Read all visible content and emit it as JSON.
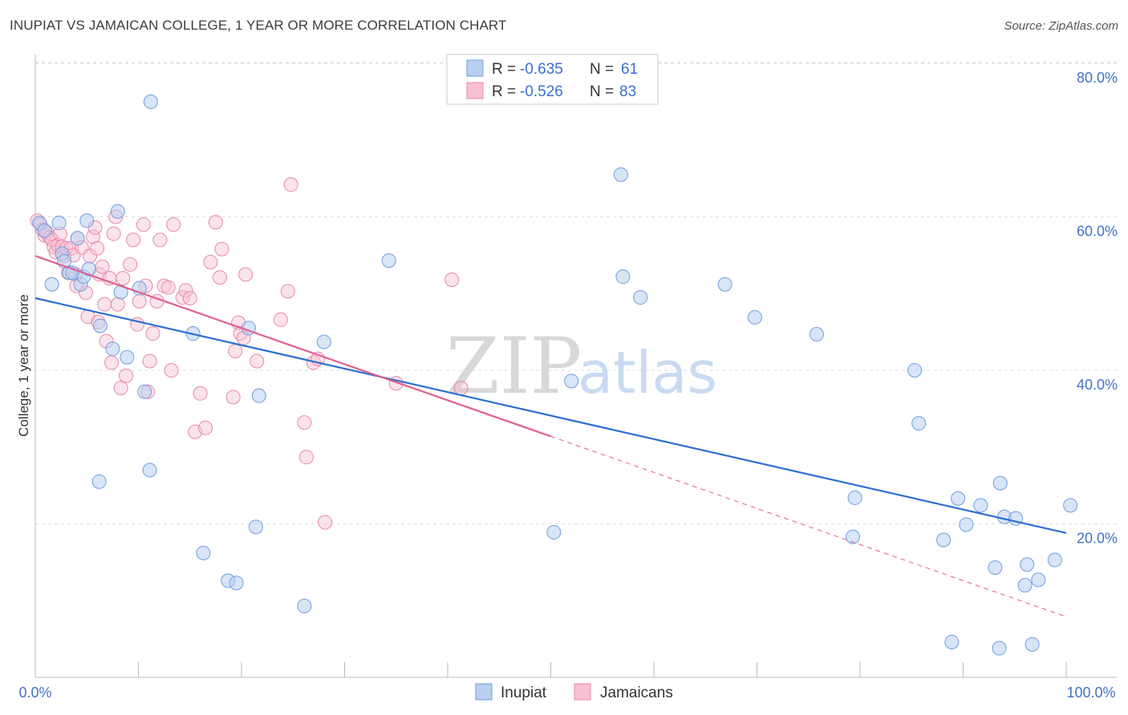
{
  "header": {
    "title": "INUPIAT VS JAMAICAN COLLEGE, 1 YEAR OR MORE CORRELATION CHART",
    "source": "Source: ZipAtlas.com"
  },
  "watermark": {
    "zip": "ZIP",
    "atlas": "atlas"
  },
  "colors": {
    "inupiat_fill": "#b8cff0",
    "inupiat_stroke": "#6f9ee0",
    "inupiat_line": "#2e6fd2",
    "jamaican_fill": "#f6c0d2",
    "jamaican_stroke": "#e888aa",
    "jamaican_line": "#e0608e",
    "grid": "#dddddd",
    "tick_text": "#4472c4"
  },
  "legend": {
    "rows": [
      {
        "r_label": "R =",
        "r_value": "-0.635",
        "n_label": "N =",
        "n_value": "61"
      },
      {
        "r_label": "R =",
        "r_value": "-0.526",
        "n_label": "N =",
        "n_value": "83"
      }
    ]
  },
  "chart_data": {
    "type": "scatter",
    "title": "INUPIAT VS JAMAICAN COLLEGE, 1 YEAR OR MORE CORRELATION CHART",
    "xlabel": "",
    "ylabel": "College, 1 year or more",
    "xlim": [
      0,
      100
    ],
    "ylim": [
      0,
      83
    ],
    "x_tick_labels": [
      "0.0%",
      "100.0%"
    ],
    "y_ticks": [
      20,
      40,
      60,
      80
    ],
    "y_tick_labels": [
      "20.0%",
      "40.0%",
      "60.0%",
      "80.0%"
    ],
    "grid": true,
    "legend_position": "top-center",
    "series": [
      {
        "name": "Inupiat",
        "r": -0.635,
        "n": 61,
        "trend": {
          "x": [
            0,
            100
          ],
          "y": [
            49.4,
            18.8
          ]
        },
        "points": [
          [
            0.4,
            59.2
          ],
          [
            0.9,
            58.2
          ],
          [
            1.6,
            51.2
          ],
          [
            2.3,
            59.2
          ],
          [
            2.6,
            55.2
          ],
          [
            2.8,
            54.2
          ],
          [
            3.3,
            52.7
          ],
          [
            3.6,
            52.7
          ],
          [
            4.1,
            57.2
          ],
          [
            4.4,
            51.2
          ],
          [
            4.7,
            52.2
          ],
          [
            5.0,
            59.5
          ],
          [
            5.2,
            53.2
          ],
          [
            6.3,
            45.8
          ],
          [
            6.2,
            25.5
          ],
          [
            7.5,
            42.8
          ],
          [
            8.0,
            60.7
          ],
          [
            8.3,
            50.2
          ],
          [
            8.9,
            41.7
          ],
          [
            10.1,
            50.7
          ],
          [
            10.6,
            37.2
          ],
          [
            11.1,
            27.0
          ],
          [
            11.2,
            75.0
          ],
          [
            15.3,
            44.8
          ],
          [
            16.3,
            16.2
          ],
          [
            18.7,
            12.6
          ],
          [
            19.5,
            12.3
          ],
          [
            20.7,
            45.5
          ],
          [
            21.4,
            19.6
          ],
          [
            21.7,
            36.7
          ],
          [
            26.1,
            9.3
          ],
          [
            28.0,
            43.7
          ],
          [
            34.3,
            54.3
          ],
          [
            50.3,
            18.9
          ],
          [
            52.0,
            38.6
          ],
          [
            56.8,
            65.5
          ],
          [
            57.0,
            52.2
          ],
          [
            58.7,
            49.5
          ],
          [
            66.9,
            51.2
          ],
          [
            69.8,
            46.9
          ],
          [
            75.8,
            44.7
          ],
          [
            79.3,
            18.3
          ],
          [
            79.5,
            23.4
          ],
          [
            85.7,
            33.1
          ],
          [
            85.3,
            40.0
          ],
          [
            88.1,
            17.9
          ],
          [
            89.5,
            23.3
          ],
          [
            90.3,
            19.9
          ],
          [
            91.7,
            22.4
          ],
          [
            93.1,
            14.3
          ],
          [
            93.6,
            25.3
          ],
          [
            93.5,
            3.8
          ],
          [
            94.0,
            20.9
          ],
          [
            95.1,
            20.7
          ],
          [
            96.0,
            12.0
          ],
          [
            96.2,
            14.7
          ],
          [
            96.7,
            4.3
          ],
          [
            97.3,
            12.7
          ],
          [
            98.9,
            15.3
          ],
          [
            100.4,
            22.4
          ],
          [
            88.9,
            4.6
          ]
        ]
      },
      {
        "name": "Jamaicans",
        "r": -0.526,
        "n": 83,
        "trend": {
          "x": [
            0,
            50
          ],
          "y": [
            54.9,
            31.4
          ]
        },
        "trend_dashed": {
          "x": [
            50,
            100
          ],
          "y": [
            31.4,
            7.9
          ]
        },
        "points": [
          [
            0.2,
            59.5
          ],
          [
            0.5,
            59.0
          ],
          [
            0.7,
            58.3
          ],
          [
            0.9,
            57.6
          ],
          [
            1.1,
            58.0
          ],
          [
            1.4,
            57.3
          ],
          [
            1.6,
            57.0
          ],
          [
            1.8,
            56.1
          ],
          [
            2.0,
            55.4
          ],
          [
            2.2,
            56.3
          ],
          [
            2.4,
            57.8
          ],
          [
            2.6,
            56.1
          ],
          [
            2.8,
            54.9
          ],
          [
            3.0,
            55.9
          ],
          [
            3.2,
            52.7
          ],
          [
            3.5,
            55.9
          ],
          [
            3.7,
            55.0
          ],
          [
            3.9,
            52.5
          ],
          [
            4.0,
            51.0
          ],
          [
            4.1,
            57.2
          ],
          [
            4.5,
            56.0
          ],
          [
            4.9,
            50.1
          ],
          [
            5.1,
            47.0
          ],
          [
            5.3,
            54.9
          ],
          [
            5.6,
            57.4
          ],
          [
            5.8,
            58.6
          ],
          [
            6.0,
            55.9
          ],
          [
            6.2,
            52.5
          ],
          [
            6.5,
            53.5
          ],
          [
            6.7,
            48.6
          ],
          [
            6.9,
            43.8
          ],
          [
            7.2,
            52.0
          ],
          [
            7.4,
            41.0
          ],
          [
            7.6,
            57.8
          ],
          [
            7.8,
            60.0
          ],
          [
            8.0,
            48.6
          ],
          [
            8.3,
            37.7
          ],
          [
            8.5,
            52.0
          ],
          [
            8.8,
            39.3
          ],
          [
            9.2,
            53.8
          ],
          [
            9.5,
            57.0
          ],
          [
            9.9,
            46.0
          ],
          [
            10.1,
            49.0
          ],
          [
            10.5,
            59.0
          ],
          [
            10.7,
            51.0
          ],
          [
            10.9,
            37.2
          ],
          [
            11.1,
            41.2
          ],
          [
            11.4,
            44.8
          ],
          [
            11.8,
            49.0
          ],
          [
            12.1,
            57.0
          ],
          [
            12.5,
            51.0
          ],
          [
            12.9,
            50.8
          ],
          [
            13.2,
            40.0
          ],
          [
            13.4,
            59.0
          ],
          [
            14.3,
            49.5
          ],
          [
            14.6,
            50.4
          ],
          [
            15.0,
            49.4
          ],
          [
            15.5,
            32.0
          ],
          [
            16.0,
            37.0
          ],
          [
            16.5,
            32.5
          ],
          [
            17.0,
            54.1
          ],
          [
            17.5,
            59.3
          ],
          [
            17.9,
            52.1
          ],
          [
            18.1,
            55.8
          ],
          [
            19.2,
            36.5
          ],
          [
            19.4,
            42.5
          ],
          [
            19.7,
            46.2
          ],
          [
            19.9,
            44.8
          ],
          [
            20.2,
            44.2
          ],
          [
            20.4,
            52.5
          ],
          [
            21.5,
            41.2
          ],
          [
            23.8,
            46.6
          ],
          [
            24.5,
            50.3
          ],
          [
            24.8,
            64.2
          ],
          [
            26.1,
            33.2
          ],
          [
            26.3,
            28.7
          ],
          [
            27.0,
            41.0
          ],
          [
            27.4,
            41.5
          ],
          [
            28.1,
            20.2
          ],
          [
            35.0,
            38.3
          ],
          [
            40.4,
            51.8
          ],
          [
            41.3,
            37.7
          ],
          [
            6.1,
            46.3
          ]
        ]
      }
    ]
  },
  "bottom_legend": {
    "items": [
      {
        "label": "Inupiat"
      },
      {
        "label": "Jamaicans"
      }
    ]
  }
}
